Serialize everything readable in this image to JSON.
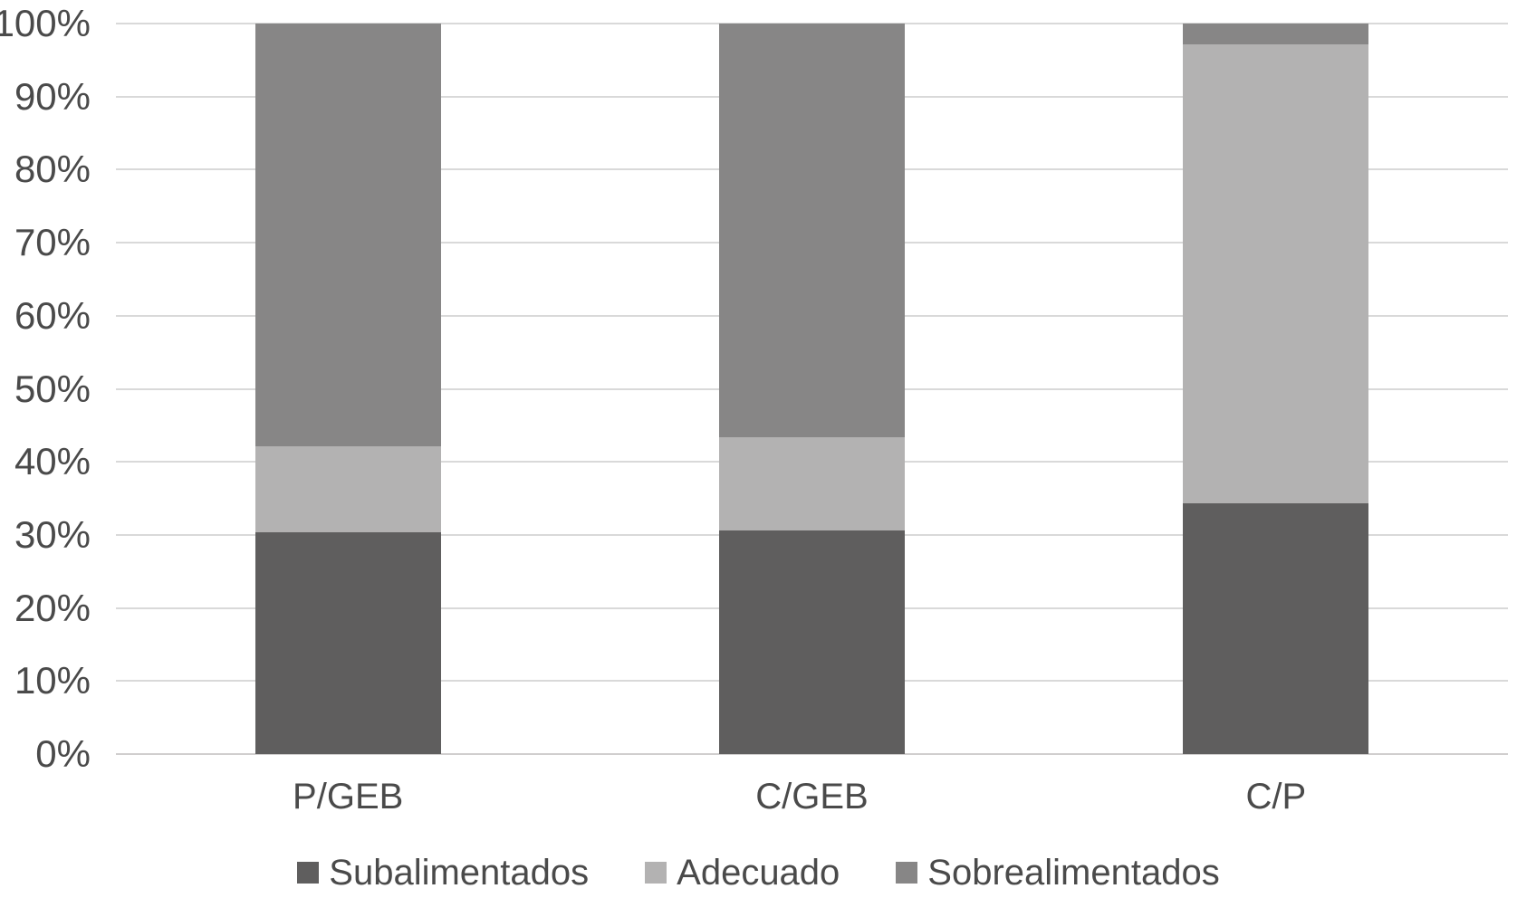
{
  "chart_data": {
    "type": "bar",
    "variant": "stacked-100-percent",
    "title": "",
    "xlabel": "",
    "ylabel": "",
    "categories": [
      "P/GEB",
      "C/GEB",
      "C/P"
    ],
    "series": [
      {
        "name": "Subalimentados",
        "color": "#5f5e5e",
        "values": [
          30.4,
          30.6,
          34.3
        ]
      },
      {
        "name": "Adecuado",
        "color": "#b3b2b2",
        "values": [
          11.7,
          12.8,
          62.8
        ]
      },
      {
        "name": "Sobrealimentados",
        "color": "#878686",
        "values": [
          57.9,
          56.6,
          2.9
        ]
      }
    ],
    "ylim": [
      0,
      100
    ],
    "ytick_step": 10,
    "yticks": [
      "0%",
      "10%",
      "20%",
      "30%",
      "40%",
      "50%",
      "60%",
      "70%",
      "80%",
      "90%",
      "100%"
    ],
    "grid": true,
    "legend_position": "bottom"
  },
  "colors": {
    "background": "#ffffff",
    "gridline": "#d9d9d9",
    "axis_line": "#d0cece",
    "tick_text": "#4a4a4a"
  }
}
